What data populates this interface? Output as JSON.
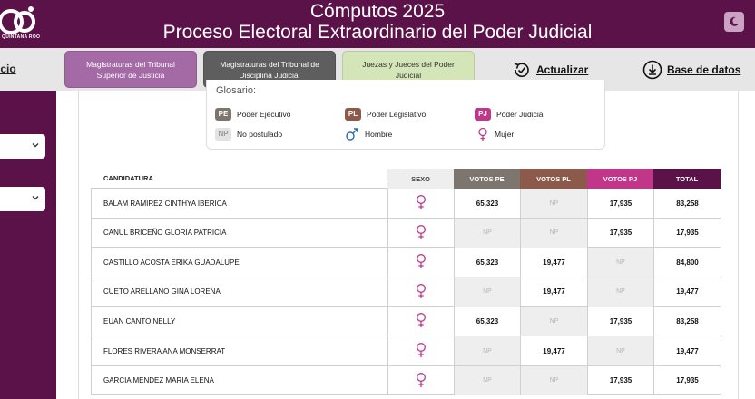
{
  "header": {
    "title_line1": "Cómputos 2025",
    "title_line2": "Proceso Electoral Extraordinario del Poder Judicial",
    "logo_text": "QUINTANA ROO"
  },
  "nav": {
    "inicio": "icio",
    "tabs": [
      {
        "label": "Magistraturas del Tribunal Superior de Justicia"
      },
      {
        "label": "Magistraturas del Tribunal de Disciplina Judicial"
      },
      {
        "label": "Juezas y Jueces del Poder Judicial"
      }
    ],
    "actualizar": "Actualizar",
    "base_datos": "Base de datos"
  },
  "glossary": {
    "title": "Glosario:",
    "items": [
      {
        "badge": "PE",
        "label": "Poder Ejecutivo"
      },
      {
        "badge": "PL",
        "label": "Poder Legislativo"
      },
      {
        "badge": "PJ",
        "label": "Poder Judicial"
      },
      {
        "badge": "NP",
        "label": "No postulado"
      },
      {
        "icon": "male-icon",
        "label": "Hombre"
      },
      {
        "icon": "female-icon",
        "label": "Mujer"
      }
    ]
  },
  "table": {
    "headers": [
      "CANDIDATURA",
      "SEXO",
      "VOTOS PE",
      "VOTOS PL",
      "VOTOS PJ",
      "TOTAL"
    ],
    "rows": [
      {
        "name": "BALAM RAMIREZ CINTHYA IBERICA",
        "pe": "65,323",
        "pl": "NP",
        "pj": "17,935",
        "total": "83,258"
      },
      {
        "name": "CANUL BRICEÑO GLORIA PATRICIA",
        "pe": "NP",
        "pl": "NP",
        "pj": "17,935",
        "total": "17,935"
      },
      {
        "name": "CASTILLO ACOSTA ERIKA GUADALUPE",
        "pe": "65,323",
        "pl": "19,477",
        "pj": "NP",
        "total": "84,800"
      },
      {
        "name": "CUETO ARELLANO GINA LORENA",
        "pe": "NP",
        "pl": "19,477",
        "pj": "NP",
        "total": "19,477"
      },
      {
        "name": "EUAN CANTO NELLY",
        "pe": "65,323",
        "pl": "NP",
        "pj": "17,935",
        "total": "83,258"
      },
      {
        "name": "FLORES RIVERA ANA MONSERRAT",
        "pe": "NP",
        "pl": "19,477",
        "pj": "NP",
        "total": "19,477"
      },
      {
        "name": "GARCIA MENDEZ MARIA ELENA",
        "pe": "NP",
        "pl": "NP",
        "pj": "17,935",
        "total": "17,935"
      }
    ]
  },
  "colors": {
    "brand": "#5b1248",
    "pe": "#7d766e",
    "pl": "#8c5a4b",
    "pj": "#c2368a",
    "female": "#c2368a",
    "male": "#2a6db0"
  }
}
